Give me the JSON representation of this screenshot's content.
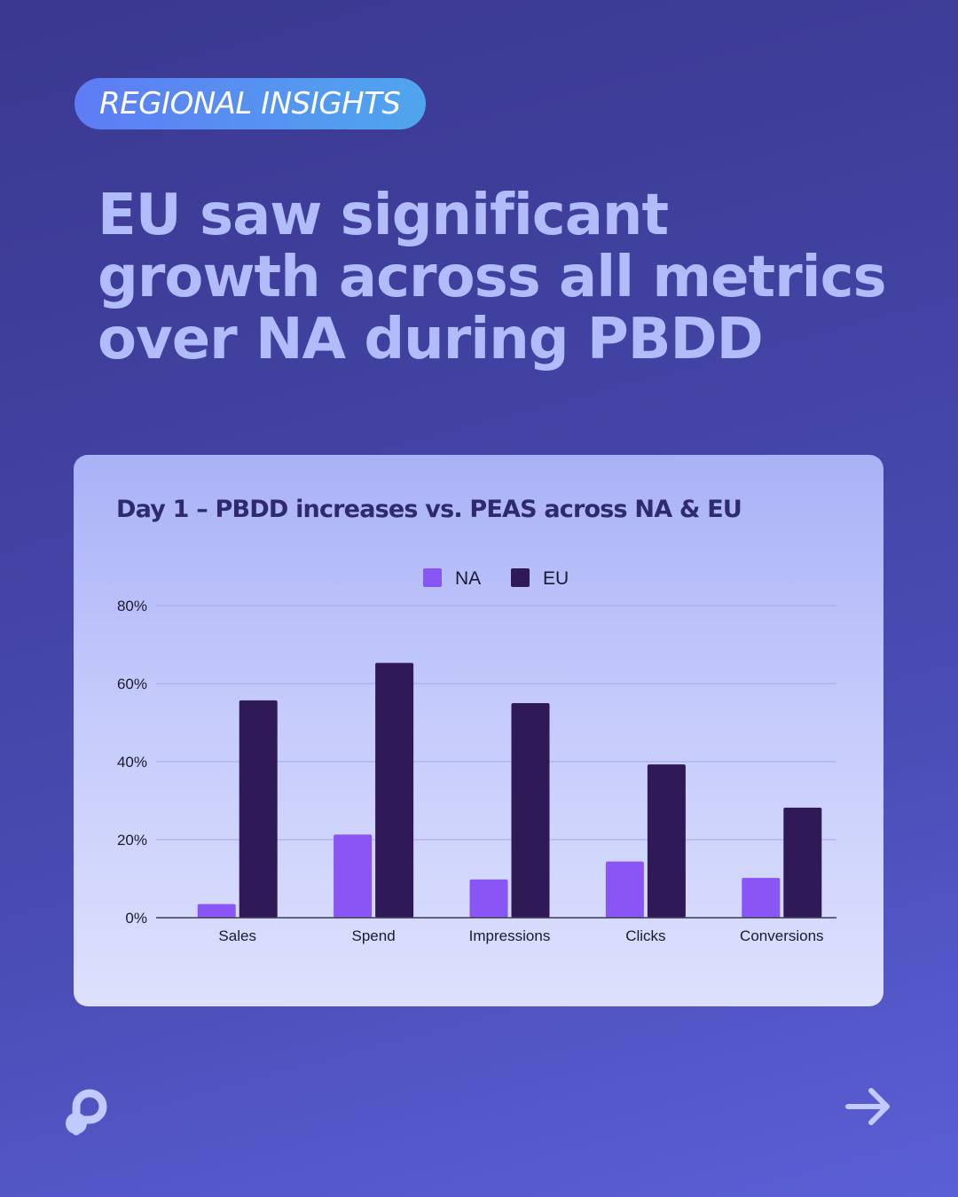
{
  "badge": {
    "label": "REGIONAL INSIGHTS"
  },
  "headline": {
    "line1": "EU saw significant",
    "line2": "growth across all metrics",
    "line3": "over NA during PBDD"
  },
  "chart_data": {
    "type": "bar",
    "title": "Day 1 – PBDD increases vs. PEAS across NA & EU",
    "categories": [
      "Sales",
      "Spend",
      "Impressions",
      "Clicks",
      "Conversions"
    ],
    "series": [
      {
        "name": "NA",
        "values": [
          3.5,
          21.3,
          9.8,
          14.4,
          10.2
        ],
        "color": "#8a55f5"
      },
      {
        "name": "EU",
        "values": [
          55.7,
          65.3,
          55.0,
          39.3,
          28.2
        ],
        "color": "#2f1a57"
      }
    ],
    "xlabel": "",
    "ylabel": "",
    "ylim": [
      0,
      80
    ],
    "yticks": [
      0,
      20,
      40,
      60,
      80
    ],
    "ytick_labels": [
      "0%",
      "20%",
      "40%",
      "60%",
      "80%"
    ],
    "grid": true,
    "legend": "top-center"
  },
  "footer": {
    "logo_icon": "brand-logo-icon",
    "next_icon": "arrow-right-icon"
  },
  "colors": {
    "headline": "#b3bcfb",
    "badge_start": "#5e7cf5",
    "badge_end": "#4fa6ee",
    "card_top": "#aab2f7",
    "card_bottom": "#dde1fd",
    "chart_title": "#2f2a6e",
    "icon": "#c3caff"
  }
}
